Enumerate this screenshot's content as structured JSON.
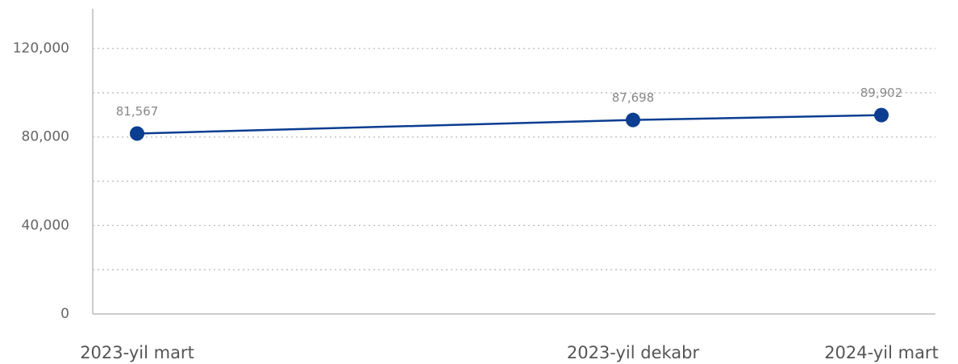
{
  "chart_data": {
    "type": "line",
    "categories": [
      "2023-yil mart",
      "2023-yil dekabr",
      "2024-yil mart"
    ],
    "series": [
      {
        "color": "#0b3d91",
        "values": [
          81567,
          87698,
          89902
        ],
        "value_labels": [
          "81,567",
          "87,698",
          "89,902"
        ]
      }
    ],
    "ylim": [
      0,
      135000
    ],
    "yticks": [
      0,
      {
        "value": 40000,
        "label": "40,000"
      },
      {
        "value": 80000,
        "label": "80,000"
      },
      {
        "value": 120000,
        "label": "120,000"
      }
    ],
    "minor_yticks": [
      20000,
      60000,
      100000
    ],
    "grid": true
  }
}
